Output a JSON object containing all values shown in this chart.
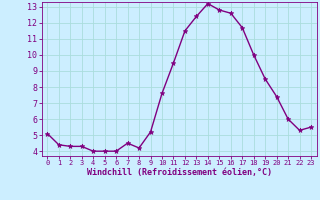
{
  "x": [
    0,
    1,
    2,
    3,
    4,
    5,
    6,
    7,
    8,
    9,
    10,
    11,
    12,
    13,
    14,
    15,
    16,
    17,
    18,
    19,
    20,
    21,
    22,
    23
  ],
  "y": [
    5.1,
    4.4,
    4.3,
    4.3,
    4.0,
    4.0,
    4.0,
    4.5,
    4.2,
    5.2,
    7.6,
    9.5,
    11.5,
    12.4,
    13.2,
    12.8,
    12.6,
    11.7,
    10.0,
    8.5,
    7.4,
    6.0,
    5.3,
    5.5
  ],
  "line_color": "#800080",
  "marker": "*",
  "marker_size": 3.5,
  "bg_color": "#cceeff",
  "grid_color": "#aadddd",
  "xlabel": "Windchill (Refroidissement éolien,°C)",
  "xlabel_color": "#800080",
  "tick_color": "#800080",
  "ylim_min": 3.7,
  "ylim_max": 13.3,
  "xlim_min": -0.5,
  "xlim_max": 23.5,
  "yticks": [
    4,
    5,
    6,
    7,
    8,
    9,
    10,
    11,
    12,
    13
  ],
  "xticks": [
    0,
    1,
    2,
    3,
    4,
    5,
    6,
    7,
    8,
    9,
    10,
    11,
    12,
    13,
    14,
    15,
    16,
    17,
    18,
    19,
    20,
    21,
    22,
    23
  ],
  "xlabel_fontsize": 6.0,
  "xtick_fontsize": 5.0,
  "ytick_fontsize": 6.0
}
